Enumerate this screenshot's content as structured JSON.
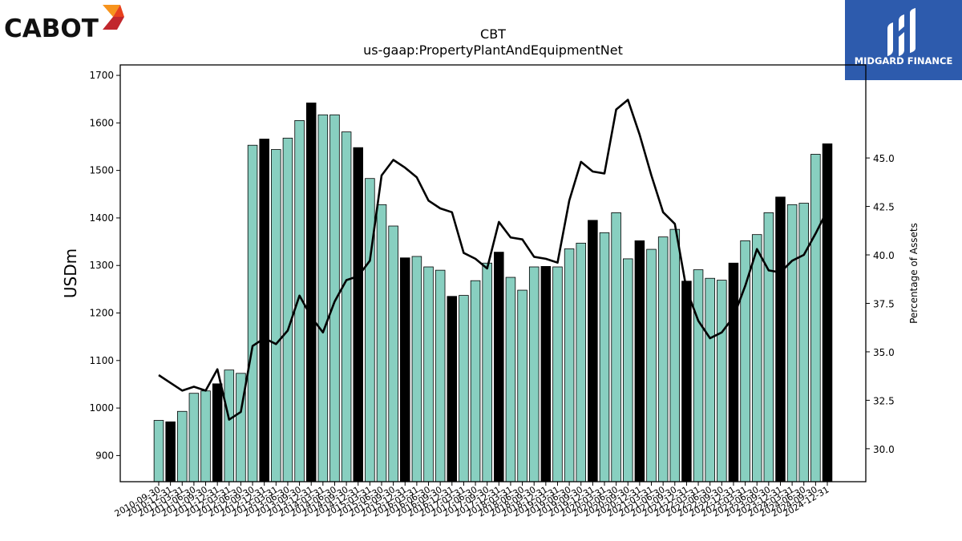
{
  "brand": {
    "name": "CABOT",
    "mark_colors": [
      "#f7941d",
      "#e8401c",
      "#c1272d"
    ]
  },
  "partner": {
    "name": "MIDGARD FINANCE",
    "bg_color": "#2d5bad"
  },
  "chart_data": {
    "type": "bar",
    "title": "CBT",
    "subtitle": "us-gaap:PropertyPlantAndEquipmentNet",
    "ylabel": "USDm",
    "y2label": "Percentage of Assets",
    "ylim": [
      845,
      1722
    ],
    "y2lim": [
      28.3,
      49.8
    ],
    "yticks": [
      900,
      1000,
      1100,
      1200,
      1300,
      1400,
      1500,
      1600,
      1700
    ],
    "y2ticks": [
      30.0,
      32.5,
      35.0,
      37.5,
      40.0,
      42.5,
      45.0
    ],
    "y2tick_labels": [
      "30.0",
      "32.5",
      "35.0",
      "37.5",
      "40.0",
      "42.5",
      "45.0"
    ],
    "grid": false,
    "colors": {
      "bar": "#88cfc0",
      "highlight_bar": "#000000",
      "edge": "#000000",
      "line": "#000000"
    },
    "categories": [
      "2010-09-30",
      "2010-12-31",
      "2011-03-31",
      "2011-06-30",
      "2011-09-30",
      "2011-12-31",
      "2012-03-31",
      "2012-06-30",
      "2012-09-30",
      "2012-12-31",
      "2013-03-31",
      "2013-06-30",
      "2013-09-30",
      "2013-12-31",
      "2014-03-31",
      "2014-06-30",
      "2014-09-30",
      "2014-12-31",
      "2015-03-31",
      "2015-06-30",
      "2015-09-30",
      "2015-12-31",
      "2016-03-31",
      "2016-06-30",
      "2016-09-30",
      "2016-12-31",
      "2017-03-31",
      "2017-06-30",
      "2017-09-30",
      "2017-12-31",
      "2018-03-31",
      "2018-06-30",
      "2018-09-30",
      "2018-12-31",
      "2019-03-31",
      "2019-06-30",
      "2019-09-30",
      "2019-12-31",
      "2020-03-31",
      "2020-06-30",
      "2020-09-30",
      "2020-12-31",
      "2021-03-31",
      "2021-06-30",
      "2021-09-30",
      "2021-12-31",
      "2022-03-31",
      "2022-06-30",
      "2022-09-30",
      "2022-12-31",
      "2023-03-31",
      "2023-06-30",
      "2023-09-30",
      "2023-12-31",
      "2024-03-31",
      "2024-06-30",
      "2024-09-30",
      "2024-12-31"
    ],
    "series": [
      {
        "kind": "bar",
        "axis": "left",
        "values": [
          974,
          971,
          993,
          1031,
          1036,
          1051,
          1080,
          1073,
          1553,
          1566,
          1544,
          1568,
          1605,
          1642,
          1617,
          1617,
          1581,
          1548,
          1483,
          1428,
          1383,
          1316,
          1319,
          1297,
          1290,
          1235,
          1237,
          1268,
          1305,
          1328,
          1275,
          1248,
          1297,
          1298,
          1297,
          1335,
          1347,
          1395,
          1369,
          1411,
          1314,
          1352,
          1334,
          1360,
          1376,
          1267,
          1291,
          1273,
          1269,
          1305,
          1352,
          1365,
          1411,
          1444,
          1428,
          1431,
          1534,
          1556
        ],
        "highlight": [
          false,
          true,
          false,
          false,
          false,
          true,
          false,
          false,
          false,
          true,
          false,
          false,
          false,
          true,
          false,
          false,
          false,
          true,
          false,
          false,
          false,
          true,
          false,
          false,
          false,
          true,
          false,
          false,
          false,
          true,
          false,
          false,
          false,
          true,
          false,
          false,
          false,
          true,
          false,
          false,
          false,
          true,
          false,
          false,
          false,
          true,
          false,
          false,
          false,
          true,
          false,
          false,
          false,
          true,
          false,
          false,
          false,
          true
        ]
      },
      {
        "kind": "line",
        "axis": "right",
        "values": [
          33.8,
          33.4,
          33.0,
          33.2,
          33.0,
          34.1,
          31.5,
          31.9,
          35.3,
          35.7,
          35.4,
          36.1,
          37.9,
          36.8,
          36.0,
          37.6,
          38.7,
          38.9,
          39.7,
          44.1,
          44.9,
          44.5,
          44.0,
          42.8,
          42.4,
          42.2,
          40.1,
          39.8,
          39.3,
          41.7,
          40.9,
          40.8,
          39.9,
          39.8,
          39.6,
          42.8,
          44.8,
          44.3,
          44.2,
          47.5,
          48.0,
          46.2,
          44.1,
          42.2,
          41.6,
          38.2,
          36.6,
          35.7,
          36.0,
          36.8,
          38.4,
          40.3,
          39.2,
          39.1,
          39.7,
          40.0,
          41.1,
          42.3
        ]
      }
    ]
  }
}
